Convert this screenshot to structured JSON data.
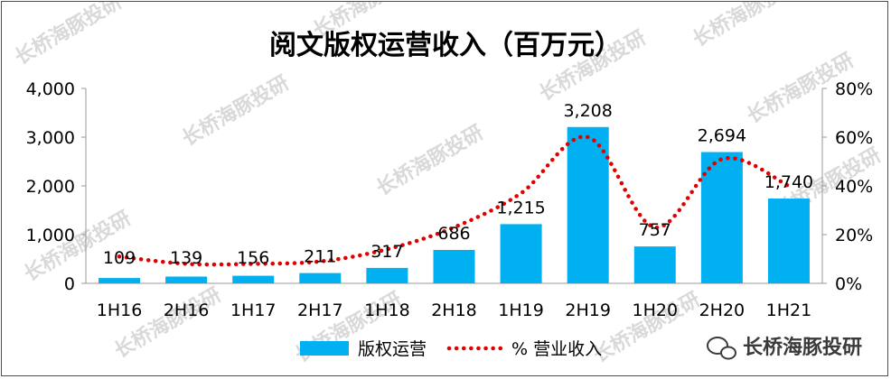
{
  "chart_data": {
    "type": "bar",
    "title": "阅文版权运营收入（百万元）",
    "categories": [
      "1H16",
      "2H16",
      "1H17",
      "2H17",
      "1H18",
      "2H18",
      "1H19",
      "2H19",
      "1H20",
      "2H20",
      "1H21"
    ],
    "series": [
      {
        "name": "版权运营",
        "type": "bar",
        "axis": "left",
        "values": [
          109,
          139,
          156,
          211,
          317,
          686,
          1215,
          3208,
          757,
          2694,
          1740
        ],
        "labels": [
          "109",
          "139",
          "156",
          "211",
          "317",
          "686",
          "1,215",
          "3,208",
          "757",
          "2,694",
          "1,740"
        ],
        "color": "#00b0f0"
      },
      {
        "name": "% 营业收入",
        "type": "line",
        "style": "dotted",
        "axis": "right",
        "values": [
          0.11,
          0.08,
          0.08,
          0.09,
          0.14,
          0.23,
          0.37,
          0.6,
          0.23,
          0.51,
          0.4
        ],
        "color": "#e00000"
      }
    ],
    "y_left": {
      "ylim": [
        0,
        4000
      ],
      "ticks": [
        "0",
        "1,000",
        "2,000",
        "3,000",
        "4,000"
      ]
    },
    "y_right": {
      "ylim": [
        0,
        0.8
      ],
      "ticks": [
        "0%",
        "20%",
        "40%",
        "60%",
        "80%"
      ]
    },
    "grid": false,
    "legend": "bottom-center"
  },
  "watermark": {
    "text": "长桥海豚投研",
    "badge_text": "长桥海豚投研",
    "badge_icon": "wechat-icon"
  }
}
